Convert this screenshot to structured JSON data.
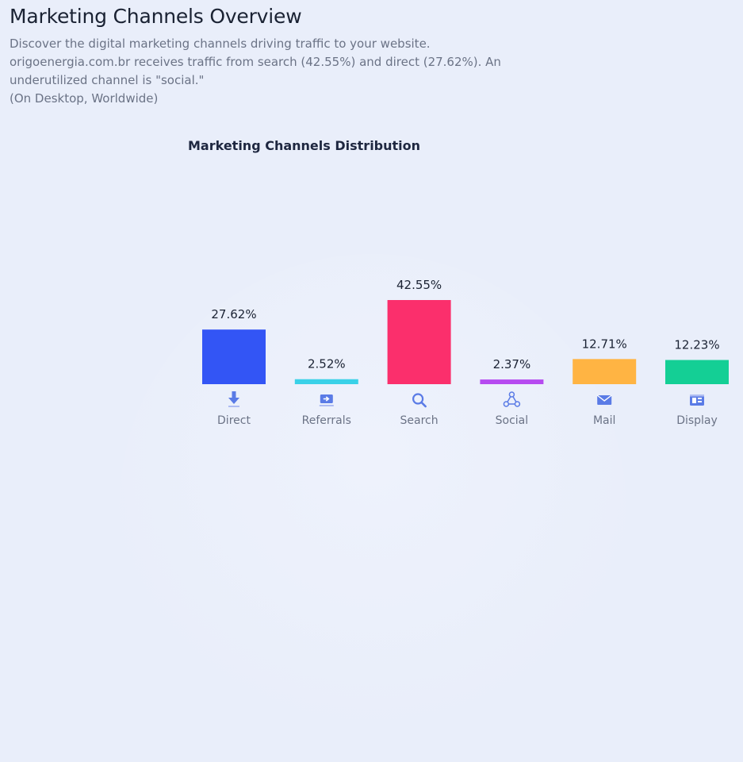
{
  "header": {
    "title": "Marketing Channels Overview",
    "description_lines": [
      "Discover the digital marketing channels driving traffic to your website.",
      "origoenergia.com.br receives traffic from search (42.55%) and direct (27.62%). An",
      "underutilized channel is \"social.\"",
      "(On Desktop, Worldwide)"
    ]
  },
  "chart_data": {
    "type": "bar",
    "title": "Marketing Channels Distribution",
    "categories": [
      "Direct",
      "Referrals",
      "Search",
      "Social",
      "Mail",
      "Display"
    ],
    "values": [
      27.62,
      2.52,
      42.55,
      2.37,
      12.71,
      12.23
    ],
    "value_labels": [
      "27.62%",
      "2.52%",
      "42.55%",
      "2.37%",
      "12.71%",
      "12.23%"
    ],
    "colors": [
      "#3355f5",
      "#3ad1e8",
      "#fb2f6c",
      "#b64af0",
      "#ffb443",
      "#14cf95"
    ],
    "icons": [
      "direct-arrow-icon",
      "referrals-icon",
      "search-icon",
      "social-icon",
      "mail-icon",
      "display-icon"
    ],
    "icon_color": "#5a7be6",
    "ylim": [
      0,
      42.55
    ],
    "grid": false,
    "legend": "none"
  }
}
